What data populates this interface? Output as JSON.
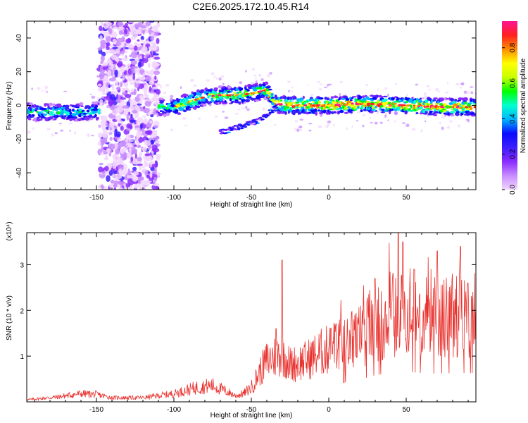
{
  "title": "C2E6.2025.172.10.45.R14",
  "colors": {
    "snr_line": "#e8322e",
    "colormap": [
      "#f2d6ff",
      "#c88cff",
      "#8a2bff",
      "#3c1eff",
      "#0a0aff",
      "#00b4ff",
      "#00ffd0",
      "#00ff00",
      "#c8ff00",
      "#ffff00",
      "#ff8c00",
      "#ff2020",
      "#ff1493"
    ]
  },
  "chart_data": [
    {
      "type": "heatmap",
      "name": "spectrogram",
      "xlabel": "Height of straight line (km)",
      "ylabel": "Frequency (Hz)",
      "xlim": [
        -195,
        95
      ],
      "ylim": [
        -50,
        50
      ],
      "xticks": [
        -150,
        -100,
        -50,
        0,
        50
      ],
      "yticks": [
        -40,
        -20,
        0,
        20,
        40
      ],
      "grid": false,
      "colorbar": {
        "label": "Normalized spectral amplitude",
        "range": [
          0.0,
          0.95
        ],
        "ticks": [
          0.0,
          0.2,
          0.4,
          0.6,
          0.8
        ]
      },
      "features": {
        "main_band_center_hz": [
          [
            -195,
            -4
          ],
          [
            -160,
            -4
          ],
          [
            -148,
            -3
          ],
          [
            -110,
            -1
          ],
          [
            -100,
            -1
          ],
          [
            -90,
            2
          ],
          [
            -80,
            5
          ],
          [
            -70,
            6
          ],
          [
            -60,
            6
          ],
          [
            -50,
            7
          ],
          [
            -40,
            9
          ],
          [
            -35,
            1
          ],
          [
            -25,
            0
          ],
          [
            0,
            0
          ],
          [
            25,
            1
          ],
          [
            50,
            0
          ],
          [
            75,
            -1
          ],
          [
            95,
            -1
          ]
        ],
        "secondary_branch_hz": [
          [
            -70,
            -16
          ],
          [
            -55,
            -12
          ],
          [
            -45,
            -9
          ],
          [
            -38,
            -4
          ],
          [
            -33,
            0
          ]
        ],
        "noise_band_km": [
          -148,
          -110
        ]
      }
    },
    {
      "type": "line",
      "name": "snr",
      "xlabel": "Height of straight line (km)",
      "ylabel": "SNR (10 * v/v)",
      "yscale_note": "(x10⁴)",
      "xlim": [
        -195,
        95
      ],
      "ylim": [
        0,
        3.7
      ],
      "xticks": [
        -150,
        -100,
        -50,
        0,
        50
      ],
      "yticks": [
        1,
        2,
        3
      ],
      "grid": false,
      "envelope": [
        [
          -195,
          0.05
        ],
        [
          -175,
          0.12
        ],
        [
          -160,
          0.2
        ],
        [
          -150,
          0.18
        ],
        [
          -140,
          0.1
        ],
        [
          -120,
          0.1
        ],
        [
          -100,
          0.2
        ],
        [
          -85,
          0.35
        ],
        [
          -75,
          0.4
        ],
        [
          -60,
          0.15
        ],
        [
          -55,
          0.2
        ],
        [
          -50,
          0.35
        ],
        [
          -45,
          0.7
        ],
        [
          -40,
          1.0
        ],
        [
          -35,
          1.1
        ],
        [
          -30,
          1.2
        ],
        [
          -25,
          0.9
        ],
        [
          -15,
          1.0
        ],
        [
          -5,
          1.2
        ],
        [
          10,
          1.4
        ],
        [
          20,
          1.6
        ],
        [
          30,
          1.95
        ],
        [
          40,
          2.1
        ],
        [
          50,
          2.2
        ],
        [
          60,
          2.1
        ],
        [
          70,
          2.05
        ],
        [
          80,
          2.1
        ],
        [
          95,
          2.1
        ]
      ],
      "spikes": [
        [
          -30,
          3.1
        ],
        [
          -34,
          1.6
        ],
        [
          30,
          2.7
        ],
        [
          45,
          3.7
        ],
        [
          48,
          3.5
        ],
        [
          55,
          2.9
        ],
        [
          70,
          3.3
        ],
        [
          85,
          3.4
        ],
        [
          90,
          2.6
        ]
      ]
    }
  ]
}
